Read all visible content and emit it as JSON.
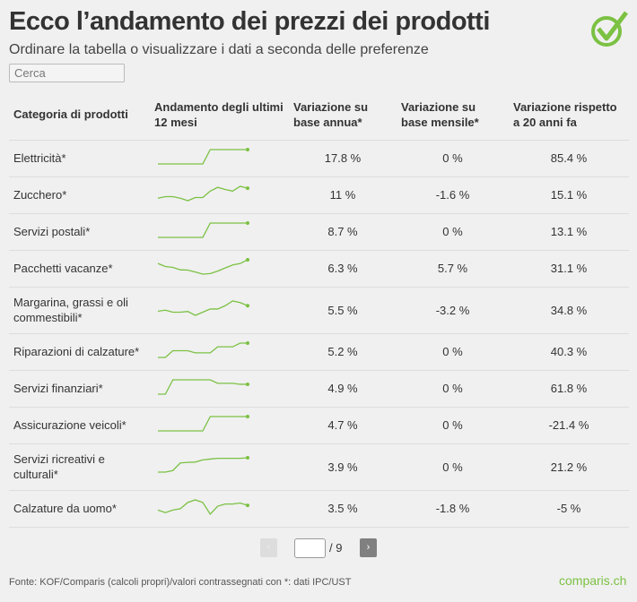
{
  "header": {
    "title": "Ecco l’andamento dei prezzi dei prodotti",
    "subtitle": "Ordinare la tabella o visualizzare i dati a seconda delle preferenze"
  },
  "search": {
    "placeholder": "Cerca",
    "value": ""
  },
  "accent_color": "#7bc143",
  "table": {
    "columns": [
      "Categoria di prodotti",
      "Andamento degli ultimi 12 mesi",
      "Variazione su base annua*",
      "Variazione su base mensile*",
      "Variazione rispetto a 20 anni fa"
    ],
    "rows": [
      {
        "category": "Elettricità*",
        "annual": "17.8 %",
        "monthly": "0 %",
        "twenty": "85.4 %",
        "trend": [
          0,
          0,
          0,
          0,
          0,
          0,
          0,
          10,
          10,
          10,
          10,
          10,
          10
        ]
      },
      {
        "category": "Zucchero*",
        "annual": "11 %",
        "monthly": "-1.6 %",
        "twenty": "15.1 %",
        "trend": [
          1.7,
          2.8,
          2.8,
          1.7,
          0,
          2.2,
          2.2,
          6.7,
          9.3,
          7.8,
          6.7,
          10,
          8.7
        ]
      },
      {
        "category": "Servizi postali*",
        "annual": "8.7 %",
        "monthly": "0 %",
        "twenty": "13.1 %",
        "trend": [
          0,
          0,
          0,
          0,
          0,
          0,
          0,
          10,
          10,
          10,
          10,
          10,
          10
        ]
      },
      {
        "category": "Pacchetti vacanze*",
        "annual": "6.3 %",
        "monthly": "5.7 %",
        "twenty": "31.1 %",
        "trend": [
          7.4,
          5.3,
          4.7,
          3,
          2.8,
          1.5,
          0,
          0.4,
          2.1,
          4.3,
          6.4,
          7.4,
          10
        ]
      },
      {
        "category": "Margarina, grassi e oli commestibili*",
        "annual": "5.5 %",
        "monthly": "-3.2 %",
        "twenty": "34.8 %",
        "trend": [
          2.9,
          3.6,
          2.2,
          2.2,
          2.7,
          0,
          2.2,
          4.4,
          4.4,
          6.7,
          10,
          8.9,
          6.7
        ]
      },
      {
        "category": "Riparazioni di calzature*",
        "annual": "5.2 %",
        "monthly": "0 %",
        "twenty": "40.3 %",
        "trend": [
          0,
          0,
          4.7,
          4.7,
          4.7,
          3.2,
          3.2,
          3.2,
          7.4,
          7.4,
          7.4,
          10,
          10
        ]
      },
      {
        "category": "Servizi finanziari*",
        "annual": "4.9 %",
        "monthly": "0 %",
        "twenty": "61.8 %",
        "trend": [
          0,
          0,
          10,
          10,
          10,
          10,
          10,
          10,
          7.6,
          7.6,
          7.6,
          6.9,
          6.9
        ]
      },
      {
        "category": "Assicurazione veicoli*",
        "annual": "4.7 %",
        "monthly": "0 %",
        "twenty": "-21.4 %",
        "trend": [
          0,
          0,
          0,
          0,
          0,
          0,
          0,
          10,
          10,
          10,
          10,
          10,
          10
        ]
      },
      {
        "category": "Servizi ricreativi e culturali*",
        "annual": "3.9 %",
        "monthly": "0 %",
        "twenty": "21.2 %",
        "trend": [
          0,
          0,
          1.1,
          6.4,
          6.8,
          7,
          8.5,
          9.1,
          9.6,
          9.6,
          9.6,
          9.6,
          10
        ]
      },
      {
        "category": "Calzature da uomo*",
        "annual": "3.5 %",
        "monthly": "-1.8 %",
        "twenty": "-5 %",
        "trend": [
          2.9,
          1.1,
          2.9,
          3.8,
          8.2,
          10,
          8.2,
          0,
          5.6,
          7.1,
          7.1,
          7.8,
          6.2
        ]
      }
    ]
  },
  "pagination": {
    "prev": "‹",
    "next": "›",
    "current": "",
    "total": "/ 9"
  },
  "footer": {
    "source": "Fonte: KOF/Comparis (calcoli propri)/valori contrassegnati con *: dati IPC/UST",
    "brand": "comparis.ch"
  }
}
